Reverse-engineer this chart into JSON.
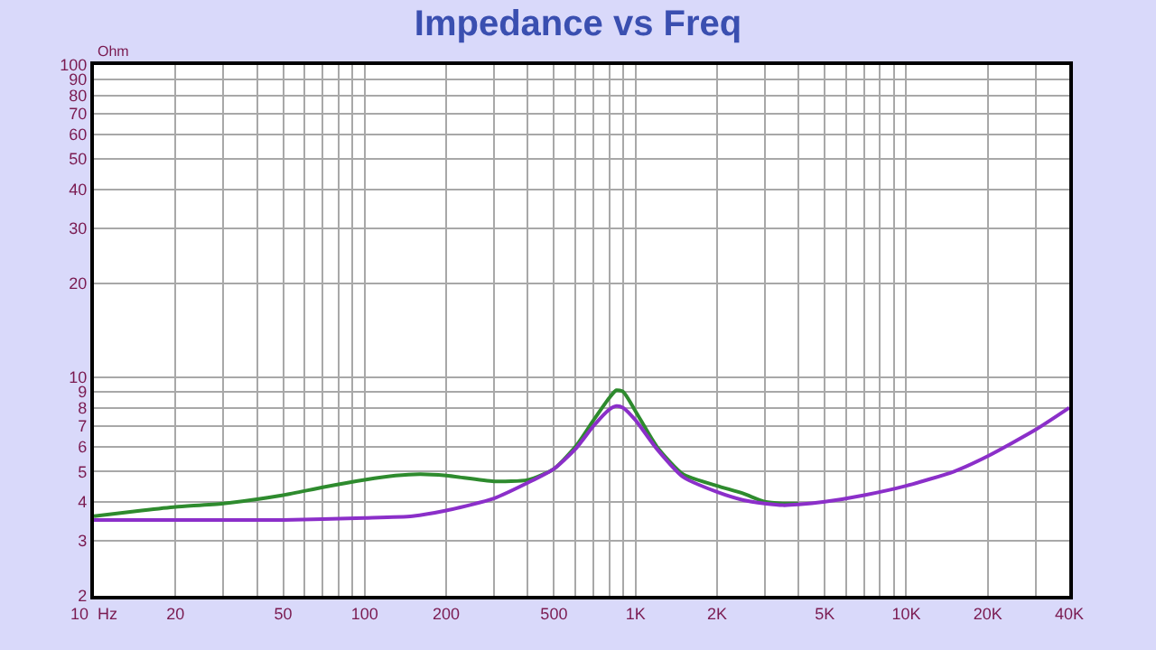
{
  "chart_data": {
    "type": "line",
    "title": "Impedance vs Freq",
    "ylabel": "Ohm",
    "log": "xy",
    "grid": true,
    "marker": "none",
    "line_style": "solid",
    "xlim": [
      10,
      40000
    ],
    "ylim": [
      2,
      100
    ],
    "xticks": [
      {
        "value": 10,
        "label": "10  Hz"
      },
      20,
      {
        "value": 30,
        "label": null
      },
      {
        "value": 40,
        "label": null
      },
      50,
      {
        "value": 60,
        "label": null
      },
      {
        "value": 70,
        "label": null
      },
      {
        "value": 80,
        "label": null
      },
      {
        "value": 90,
        "label": null
      },
      100,
      200,
      {
        "value": 300,
        "label": null
      },
      {
        "value": 400,
        "label": null
      },
      500,
      {
        "value": 600,
        "label": null
      },
      {
        "value": 700,
        "label": null
      },
      {
        "value": 800,
        "label": null
      },
      {
        "value": 900,
        "label": null
      },
      {
        "value": 1000,
        "label": "1K"
      },
      {
        "value": 2000,
        "label": "2K"
      },
      {
        "value": 3000,
        "label": null
      },
      {
        "value": 4000,
        "label": null
      },
      {
        "value": 5000,
        "label": "5K"
      },
      {
        "value": 6000,
        "label": null
      },
      {
        "value": 7000,
        "label": null
      },
      {
        "value": 8000,
        "label": null
      },
      {
        "value": 9000,
        "label": null
      },
      {
        "value": 10000,
        "label": "10K"
      },
      {
        "value": 20000,
        "label": "20K"
      },
      {
        "value": 30000,
        "label": null
      },
      {
        "value": 40000,
        "label": "40K"
      }
    ],
    "yticks": [
      2,
      3,
      4,
      5,
      6,
      7,
      8,
      9,
      10,
      20,
      30,
      40,
      50,
      60,
      70,
      80,
      90,
      100
    ],
    "series": [
      {
        "color": "#2e8b2e",
        "x": [
          10,
          15,
          20,
          30,
          50,
          70,
          100,
          130,
          160,
          200,
          300,
          400,
          500,
          600,
          700,
          800,
          850,
          900,
          1000,
          1200,
          1500,
          2000,
          2500,
          3000,
          3500,
          4000
        ],
        "values": [
          3.6,
          3.75,
          3.85,
          3.95,
          4.2,
          4.45,
          4.7,
          4.85,
          4.9,
          4.85,
          4.65,
          4.7,
          5.1,
          6.0,
          7.3,
          8.6,
          9.1,
          9.0,
          7.8,
          6.0,
          4.9,
          4.5,
          4.25,
          4.0,
          3.95,
          3.95
        ]
      },
      {
        "color": "#8b2fc9",
        "x": [
          10,
          20,
          50,
          100,
          150,
          200,
          300,
          400,
          500,
          600,
          700,
          800,
          850,
          900,
          1000,
          1200,
          1500,
          2000,
          2500,
          3000,
          3500,
          4000,
          5000,
          7000,
          10000,
          15000,
          20000,
          30000,
          40000
        ],
        "values": [
          3.5,
          3.5,
          3.5,
          3.55,
          3.6,
          3.75,
          4.1,
          4.6,
          5.1,
          5.9,
          7.0,
          7.9,
          8.1,
          8.0,
          7.3,
          5.9,
          4.8,
          4.3,
          4.05,
          3.95,
          3.9,
          3.92,
          4.0,
          4.2,
          4.5,
          5.0,
          5.6,
          6.8,
          8.0
        ]
      }
    ]
  }
}
